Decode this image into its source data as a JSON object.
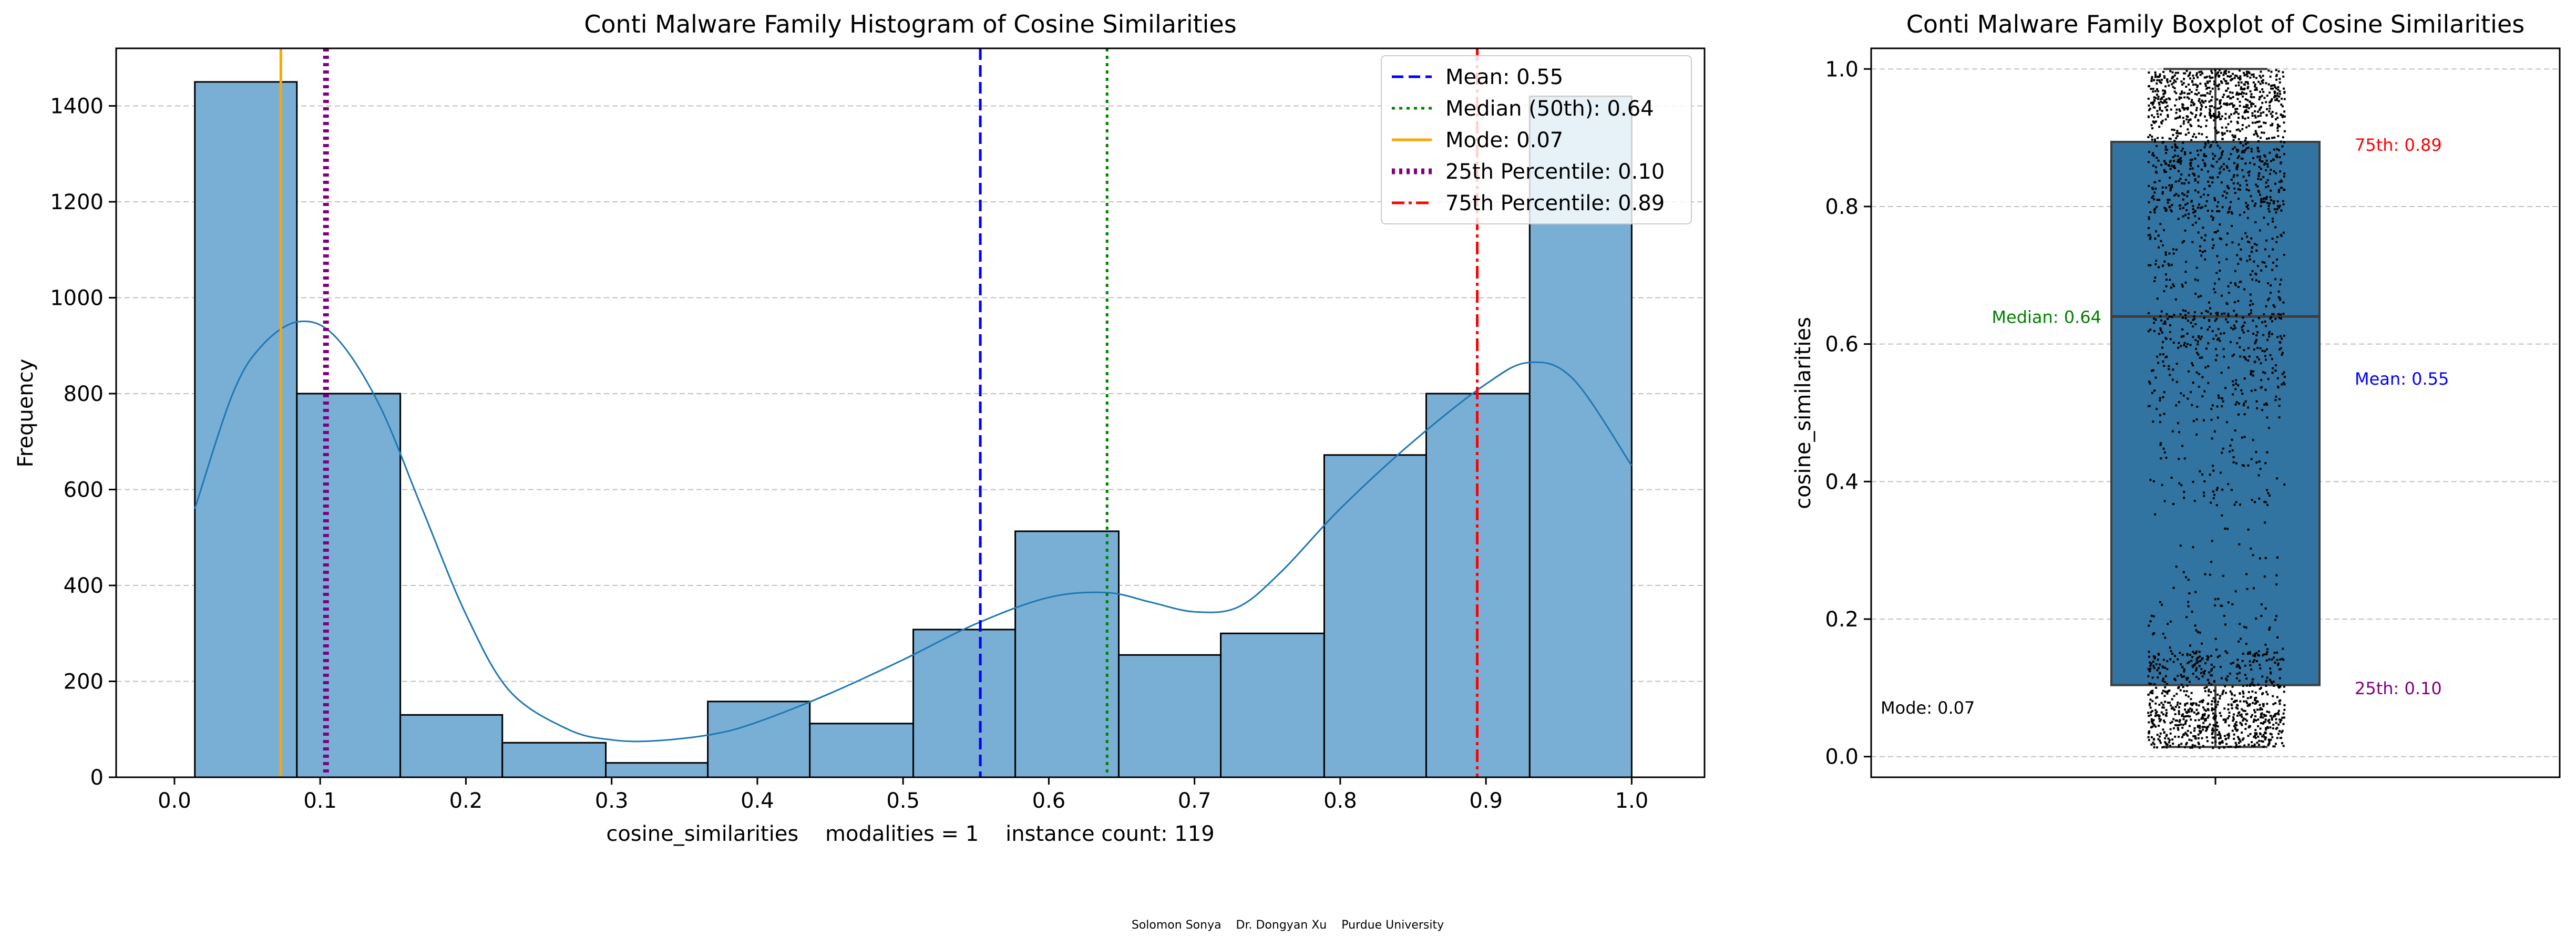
{
  "footer": "Solomon Sonya    Dr. Dongyan Xu    Purdue University",
  "colors": {
    "bar_fill": "#7aafd5",
    "bar_edge": "#000000",
    "kde_line": "#1f77b4",
    "box_fill": "#3274a1",
    "mean": "#0000ff",
    "median": "#008000",
    "mode": "#ffa500",
    "p25": "#800080",
    "p75": "#ff0000",
    "grid": "#c0c0c0"
  },
  "chart_data": [
    {
      "type": "bar",
      "title": "Conti Malware Family Histogram of Cosine Similarities",
      "xlabel": "cosine_similarities    modalities = 1    instance count: 119",
      "ylabel": "Frequency",
      "xlim": [
        -0.04,
        1.05
      ],
      "ylim": [
        0,
        1520
      ],
      "xticks": [
        0.0,
        0.1,
        0.2,
        0.3,
        0.4,
        0.5,
        0.6,
        0.7,
        0.8,
        0.9,
        1.0
      ],
      "xtick_labels": [
        "0.0",
        "0.1",
        "0.2",
        "0.3",
        "0.4",
        "0.5",
        "0.6",
        "0.7",
        "0.8",
        "0.9",
        "1.0"
      ],
      "yticks": [
        0,
        200,
        400,
        600,
        800,
        1000,
        1200,
        1400
      ],
      "ytick_labels": [
        "0",
        "200",
        "400",
        "600",
        "800",
        "1000",
        "1200",
        "1400"
      ],
      "grid": "y-dashed",
      "bins": [
        {
          "x0": 0.014,
          "x1": 0.084,
          "count": 1450
        },
        {
          "x0": 0.084,
          "x1": 0.155,
          "count": 800
        },
        {
          "x0": 0.155,
          "x1": 0.225,
          "count": 130
        },
        {
          "x0": 0.225,
          "x1": 0.296,
          "count": 72
        },
        {
          "x0": 0.296,
          "x1": 0.366,
          "count": 30
        },
        {
          "x0": 0.366,
          "x1": 0.436,
          "count": 158
        },
        {
          "x0": 0.436,
          "x1": 0.507,
          "count": 112
        },
        {
          "x0": 0.507,
          "x1": 0.577,
          "count": 308
        },
        {
          "x0": 0.577,
          "x1": 0.648,
          "count": 513
        },
        {
          "x0": 0.648,
          "x1": 0.718,
          "count": 255
        },
        {
          "x0": 0.718,
          "x1": 0.789,
          "count": 300
        },
        {
          "x0": 0.789,
          "x1": 0.859,
          "count": 672
        },
        {
          "x0": 0.859,
          "x1": 0.93,
          "count": 800
        },
        {
          "x0": 0.93,
          "x1": 1.0,
          "count": 1420
        }
      ],
      "kde": {
        "x": [
          0.014,
          0.04,
          0.06,
          0.085,
          0.11,
          0.14,
          0.17,
          0.2,
          0.23,
          0.27,
          0.3,
          0.33,
          0.37,
          0.4,
          0.45,
          0.5,
          0.55,
          0.6,
          0.64,
          0.67,
          0.7,
          0.73,
          0.76,
          0.8,
          0.85,
          0.9,
          0.93,
          0.96,
          1.0
        ],
        "y": [
          560,
          800,
          900,
          950,
          920,
          780,
          560,
          340,
          180,
          100,
          78,
          76,
          90,
          115,
          175,
          245,
          320,
          375,
          385,
          365,
          345,
          355,
          430,
          560,
          700,
          820,
          865,
          830,
          650
        ]
      },
      "reference_lines": [
        {
          "name": "Mean: 0.55",
          "x": 0.553,
          "color": "#0000ff",
          "style": "dashed",
          "width": 5
        },
        {
          "name": "Median (50th): 0.64",
          "x": 0.64,
          "color": "#008000",
          "style": "dotted",
          "width": 5
        },
        {
          "name": "Mode: 0.07",
          "x": 0.073,
          "color": "#ffa500",
          "style": "solid",
          "width": 5
        },
        {
          "name": "25th Percentile: 0.10",
          "x": 0.104,
          "color": "#800080",
          "style": "dotted",
          "width": 11
        },
        {
          "name": "75th Percentile: 0.89",
          "x": 0.894,
          "color": "#ff0000",
          "style": "dashdot",
          "width": 5
        }
      ],
      "legend": {
        "placement": "top-right"
      }
    },
    {
      "type": "box",
      "title": "Conti Malware Family Boxplot of Cosine Similarities",
      "ylabel": "cosine_similarities",
      "ylim": [
        -0.03,
        1.03
      ],
      "yticks": [
        0.0,
        0.2,
        0.4,
        0.6,
        0.8,
        1.0
      ],
      "ytick_labels": [
        "0.0",
        "0.2",
        "0.4",
        "0.6",
        "0.8",
        "1.0"
      ],
      "grid": "y-dashed",
      "stats": {
        "min": 0.014,
        "q1": 0.104,
        "median": 0.64,
        "q3": 0.894,
        "max": 1.0,
        "mean": 0.553,
        "mode": 0.073
      },
      "annotations": [
        {
          "text": "75th: 0.89",
          "y": 0.89,
          "color": "#ff0000",
          "side": "right"
        },
        {
          "text": "Median: 0.64",
          "y": 0.64,
          "color": "#008000",
          "side": "left"
        },
        {
          "text": "Mean: 0.55",
          "y": 0.55,
          "color": "#0000ff",
          "side": "right"
        },
        {
          "text": "25th: 0.10",
          "y": 0.1,
          "color": "#800080",
          "side": "right"
        },
        {
          "text": "Mode: 0.07",
          "y": 0.07,
          "color": "#000000",
          "side": "far-left"
        }
      ]
    }
  ]
}
